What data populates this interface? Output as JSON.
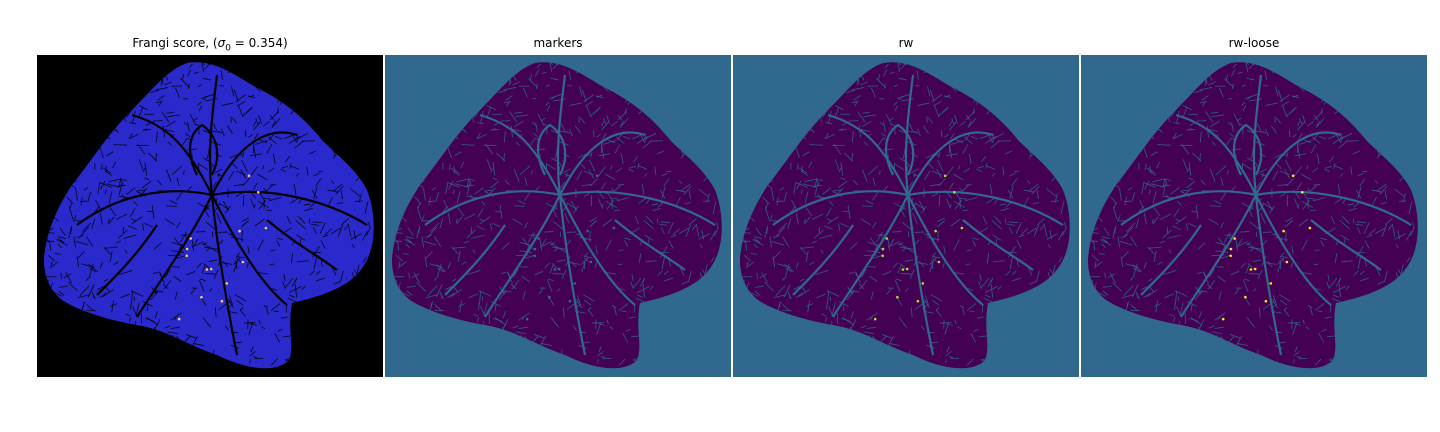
{
  "figure": {
    "panels": [
      {
        "key": "frangi",
        "title_main": "Frangi score, (",
        "title_sym": "σ",
        "title_sub": "0",
        "title_rest": " = 0.354)",
        "background": "#000000",
        "texture": "#2a2acc",
        "vein": "#000000",
        "accent": "#ffcc66"
      },
      {
        "key": "markers",
        "title": "markers",
        "background": "#31688e",
        "texture": "#440154",
        "vein": "#31688e",
        "accent": "#31688e"
      },
      {
        "key": "rw",
        "title": "rw",
        "background": "#31688e",
        "texture": "#440154",
        "vein": "#31688e",
        "accent": "#b5de2b"
      },
      {
        "key": "rw-loose",
        "title": "rw-loose",
        "background": "#31688e",
        "texture": "#440154",
        "vein": "#31688e",
        "accent": "#fde725"
      }
    ]
  }
}
